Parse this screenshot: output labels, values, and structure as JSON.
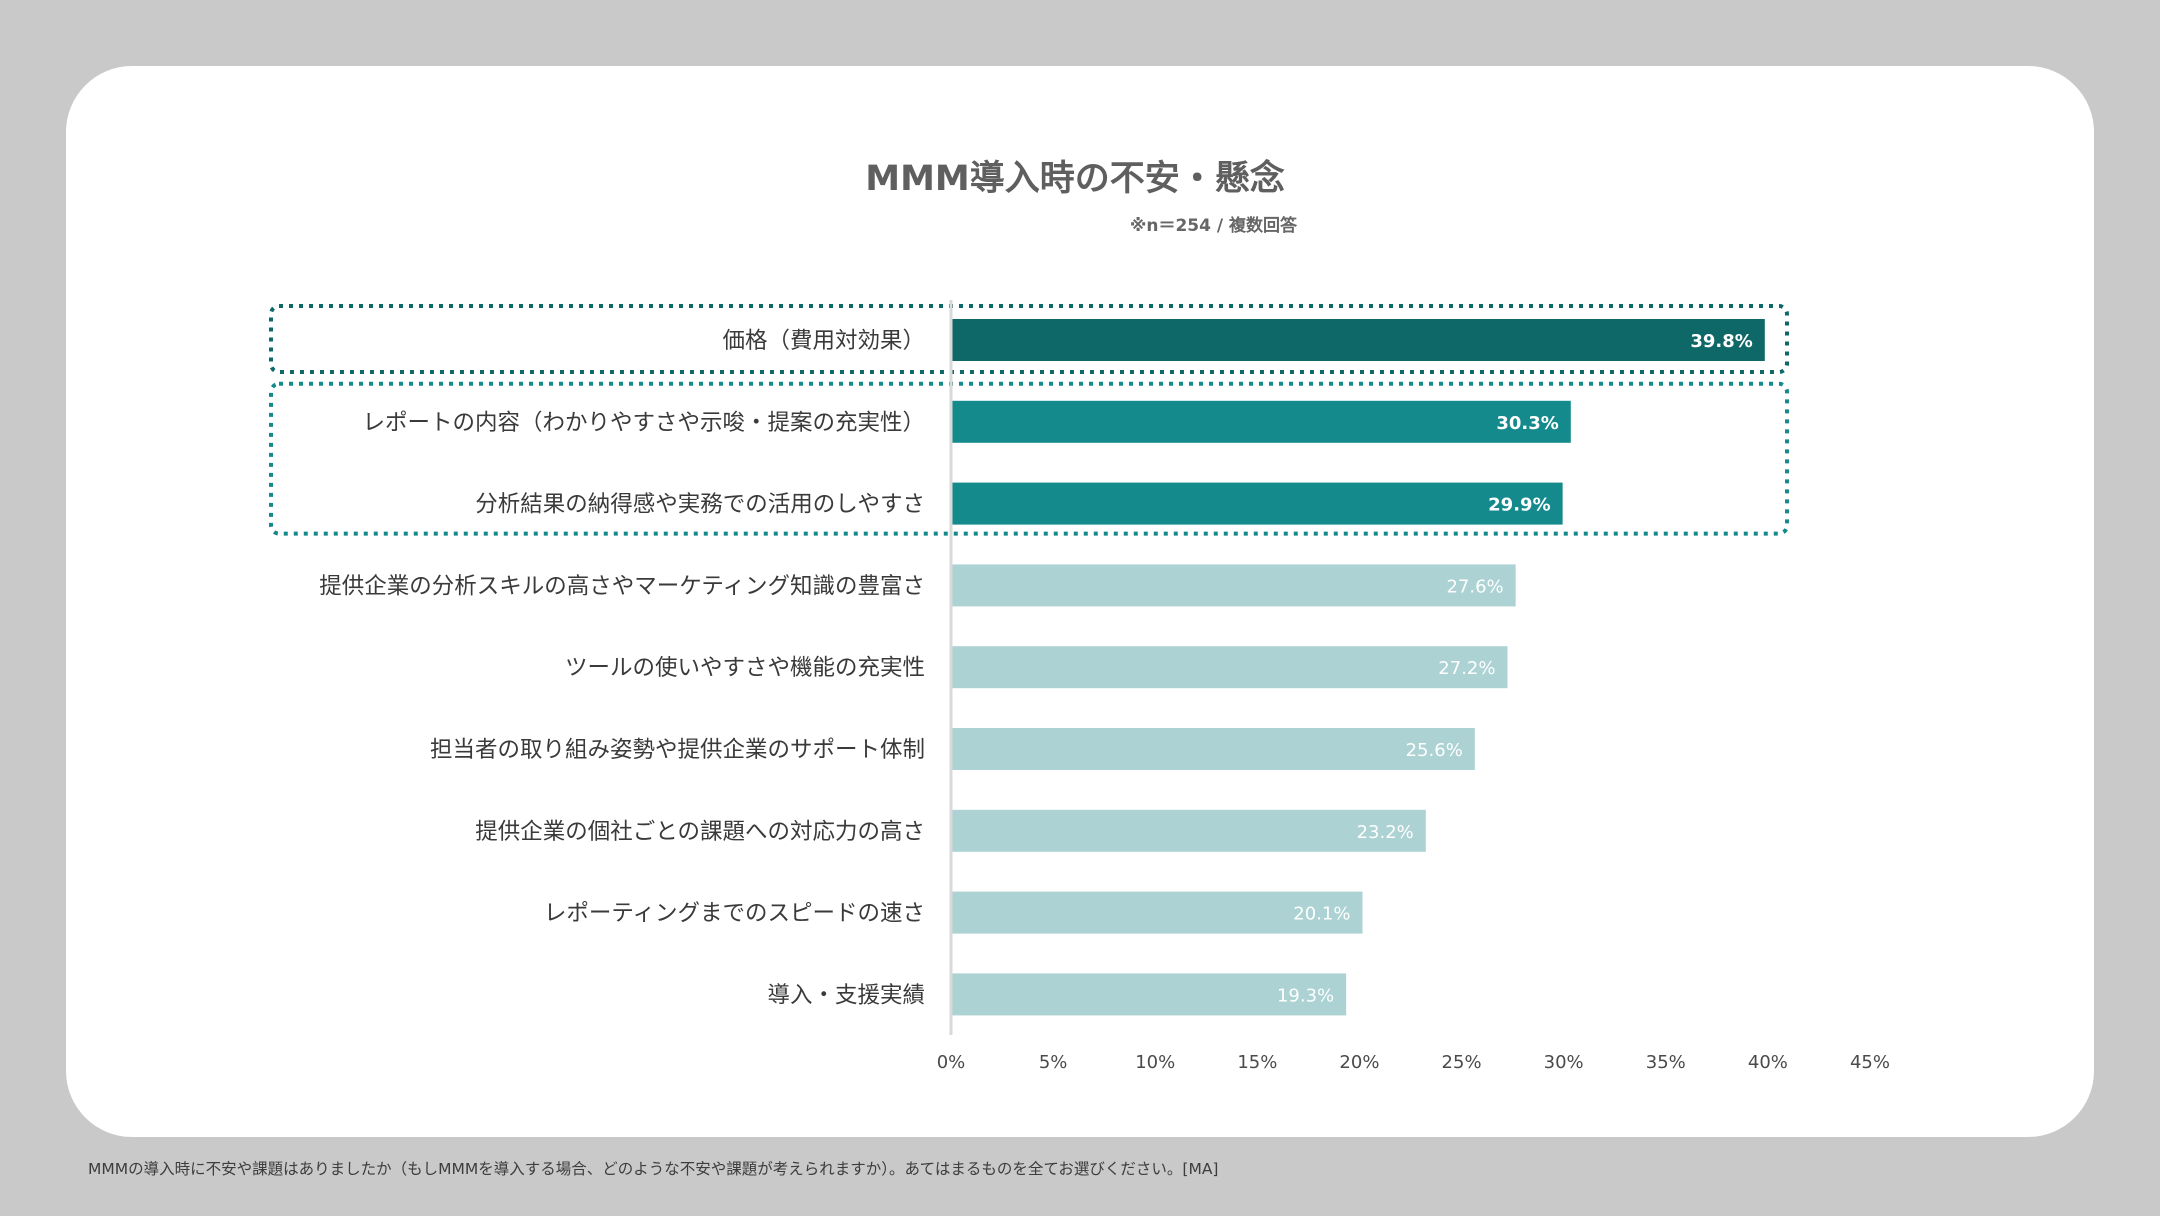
{
  "header": {
    "title": "MMM導入時の不安・懸念",
    "subtitle": "※n＝254 / 複数回答"
  },
  "footer": {
    "question": "MMMの導入時に不安や課題はありましたか（もしMMMを導入する場合、どのような不安や課題が考えられますか）。あてはまるものを全てお選びください。[MA]"
  },
  "colors": {
    "background": "#c9c9c9",
    "card": "#ffffff",
    "bar_top": "#0f6868",
    "bar_highlight": "#148a8c",
    "bar_other": "#acd2d3",
    "axis": "#d9d9d9",
    "highlight_box_1": "#0f6868",
    "highlight_box_2": "#148a8c"
  },
  "chart_data": {
    "type": "bar",
    "orientation": "horizontal",
    "title": "MMM導入時の不安・懸念",
    "subtitle": "※n＝254 / 複数回答",
    "categories": [
      "価格（費用対効果）",
      "レポートの内容（わかりやすさや示唆・提案の充実性）",
      "分析結果の納得感や実務での活用のしやすさ",
      "提供企業の分析スキルの高さやマーケティング知識の豊富さ",
      "ツールの使いやすさや機能の充実性",
      "担当者の取り組み姿勢や提供企業のサポート体制",
      "提供企業の個社ごとの課題への対応力の高さ",
      "レポーティングまでのスピードの速さ",
      "導入・支援実績"
    ],
    "values": [
      39.8,
      30.3,
      29.9,
      27.6,
      27.2,
      25.6,
      23.2,
      20.1,
      19.3
    ],
    "value_labels": [
      "39.8%",
      "30.3%",
      "29.9%",
      "27.6%",
      "27.2%",
      "25.6%",
      "23.2%",
      "20.1%",
      "19.3%"
    ],
    "emphasis": [
      "top",
      "highlight",
      "highlight",
      "normal",
      "normal",
      "normal",
      "normal",
      "normal",
      "normal"
    ],
    "highlight_groups": [
      [
        0
      ],
      [
        1,
        2
      ]
    ],
    "xlim": [
      0,
      45
    ],
    "xticks": [
      0,
      5,
      10,
      15,
      20,
      25,
      30,
      35,
      40,
      45
    ],
    "xtick_labels": [
      "0%",
      "5%",
      "10%",
      "15%",
      "20%",
      "25%",
      "30%",
      "35%",
      "40%",
      "45%"
    ],
    "unit": "%",
    "grid": false,
    "legend": "none"
  }
}
